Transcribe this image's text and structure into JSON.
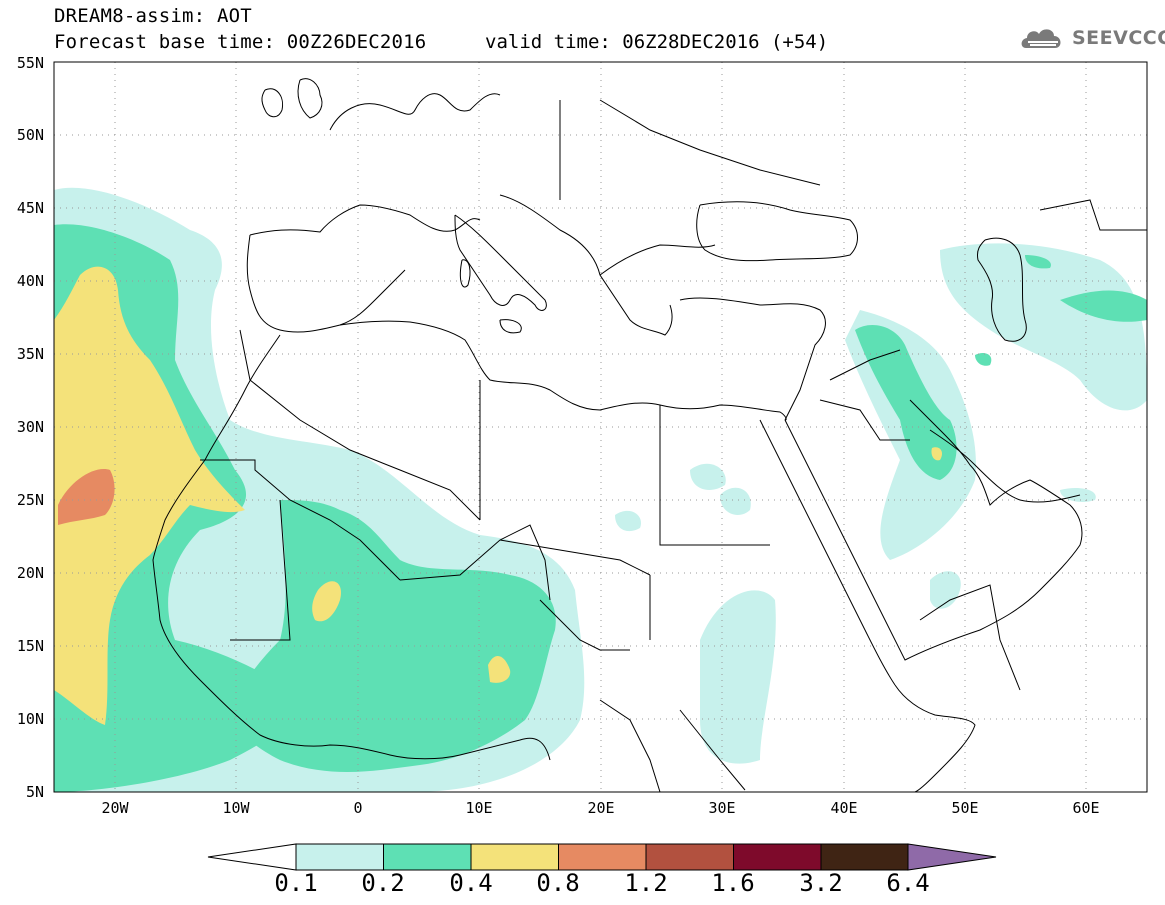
{
  "header": {
    "title": "DREAM8-assim: AOT",
    "base_time": "Forecast base time: 00Z26DEC2016",
    "valid_time": "valid time: 06Z28DEC2016 (+54)"
  },
  "logo": {
    "text": "SEEVCCC",
    "icon": "cloud-icon"
  },
  "map": {
    "projection": "lat-lon",
    "lon_range": [
      -25,
      65
    ],
    "lat_range": [
      5,
      55
    ],
    "gridlines": "dotted",
    "lat_labels": [
      "55N",
      "50N",
      "45N",
      "40N",
      "35N",
      "30N",
      "25N",
      "20N",
      "15N",
      "10N",
      "5N"
    ],
    "lon_labels": [
      "20W",
      "10W",
      "0",
      "10E",
      "20E",
      "30E",
      "40E",
      "50E",
      "60E"
    ]
  },
  "colorbar": {
    "labels": [
      "0.1",
      "0.2",
      "0.4",
      "0.8",
      "1.2",
      "1.6",
      "3.2",
      "6.4"
    ],
    "colors": [
      "#ffffff",
      "#c7f1ec",
      "#5ee0b4",
      "#f4e27a",
      "#e68a62",
      "#b2513f",
      "#7e0a2b",
      "#3f2414",
      "#8f6aa8"
    ]
  }
}
